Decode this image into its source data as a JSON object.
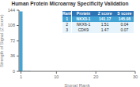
{
  "chart_data": {
    "type": "bar",
    "title": "Human Protein Microarray Specificity Validation",
    "xlabel": "Signal Rank",
    "ylabel": "Strength of Signal (Z score)",
    "x": [
      1,
      2,
      3
    ],
    "values": [
      141.17,
      1.51,
      1.47
    ],
    "colors": [
      "#42a5d5",
      "#a8d4ea",
      "#a8d4ea"
    ],
    "xlim": [
      0.5,
      30
    ],
    "xticks": [
      1,
      10,
      20,
      30
    ],
    "ylim": [
      0,
      144
    ],
    "yticks": [
      0,
      36,
      72,
      108,
      144
    ],
    "grid": false,
    "table": {
      "headers": [
        "Rank",
        "Protein",
        "Z score",
        "S score"
      ],
      "rows": [
        [
          "1",
          "NKX3-1",
          "141.17",
          "145.08"
        ],
        [
          "2",
          "NKX6-1",
          "1.51",
          "0.04"
        ],
        [
          "3",
          "CDK9",
          "1.47",
          "0.07"
        ]
      ],
      "colors": [
        "#2e75b6",
        "#42a5d5",
        "#e8f4fb",
        "#e8f4fb"
      ]
    }
  }
}
